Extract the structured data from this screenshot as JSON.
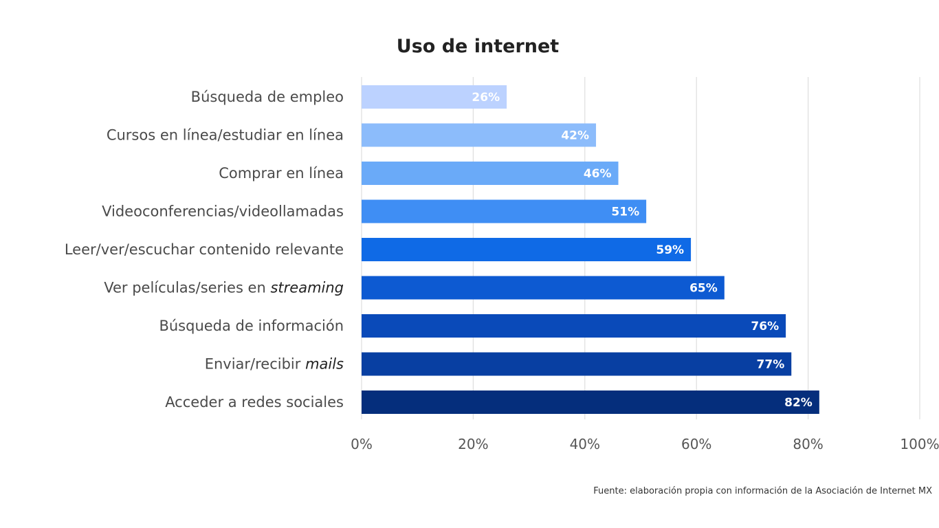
{
  "chart_data": {
    "type": "bar",
    "orientation": "horizontal",
    "title": "Uso de internet",
    "categories": [
      "Búsqueda de empleo",
      "Cursos en línea/estudiar en línea",
      "Comprar en línea",
      "Videoconferencias/videollamadas",
      "Leer/ver/escuchar contenido relevante",
      "Ver películas/series en streaming",
      "Búsqueda de información",
      "Enviar/recibir mails",
      "Acceder a redes sociales"
    ],
    "values": [
      26,
      42,
      46,
      51,
      59,
      65,
      76,
      77,
      82
    ],
    "value_labels": [
      "26%",
      "42%",
      "46%",
      "51%",
      "59%",
      "65%",
      "76%",
      "77%",
      "82%"
    ],
    "italic_words": [
      null,
      null,
      null,
      null,
      null,
      "streaming",
      null,
      "mails",
      null
    ],
    "bar_colors": [
      "#bcd2ff",
      "#8cbcfb",
      "#6aaaf8",
      "#3f8ef4",
      "#0f6ae6",
      "#0d5ad2",
      "#0a4ab9",
      "#083fa2",
      "#052e7c"
    ],
    "xlim": [
      0,
      100
    ],
    "xticks": [
      0,
      20,
      40,
      60,
      80,
      100
    ],
    "xtick_labels": [
      "0%",
      "20%",
      "40%",
      "60%",
      "80%",
      "100%"
    ],
    "grid": true,
    "xlabel": "",
    "ylabel": ""
  },
  "source": "Fuente: elaboración propia con información de la Asociación de Internet MX"
}
